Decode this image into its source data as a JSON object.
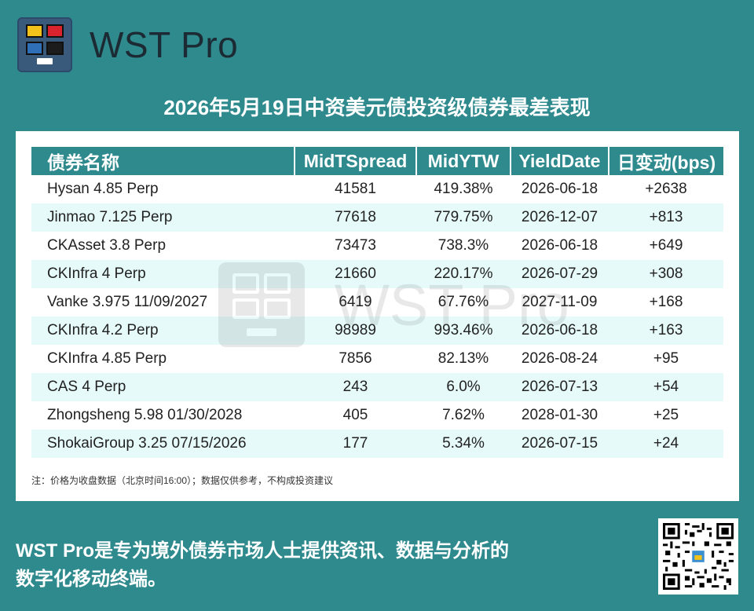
{
  "brand": {
    "name": "WST Pro"
  },
  "headline": "2026年5月19日中资美元债投资级债券最差表现",
  "table": {
    "headers": [
      "债券名称",
      "MidTSpread",
      "MidYTW",
      "YieldDate",
      "日变动(bps)"
    ],
    "rows": [
      {
        "name": "Hysan 4.85 Perp",
        "spread": "41581",
        "ytw": "419.38%",
        "date": "2026-06-18",
        "change": "+2638"
      },
      {
        "name": "Jinmao 7.125 Perp",
        "spread": "77618",
        "ytw": "779.75%",
        "date": "2026-12-07",
        "change": "+813"
      },
      {
        "name": "CKAsset 3.8 Perp",
        "spread": "73473",
        "ytw": "738.3%",
        "date": "2026-06-18",
        "change": "+649"
      },
      {
        "name": "CKInfra 4 Perp",
        "spread": "21660",
        "ytw": "220.17%",
        "date": "2026-07-29",
        "change": "+308"
      },
      {
        "name": "Vanke 3.975 11/09/2027",
        "spread": "6419",
        "ytw": "67.76%",
        "date": "2027-11-09",
        "change": "+168"
      },
      {
        "name": "CKInfra 4.2 Perp",
        "spread": "98989",
        "ytw": "993.46%",
        "date": "2026-06-18",
        "change": "+163"
      },
      {
        "name": "CKInfra 4.85 Perp",
        "spread": "7856",
        "ytw": "82.13%",
        "date": "2026-08-24",
        "change": "+95"
      },
      {
        "name": "CAS 4 Perp",
        "spread": "243",
        "ytw": "6.0%",
        "date": "2026-07-13",
        "change": "+54"
      },
      {
        "name": "Zhongsheng 5.98 01/30/2028",
        "spread": "405",
        "ytw": "7.62%",
        "date": "2028-01-30",
        "change": "+25"
      },
      {
        "name": "ShokaiGroup 3.25 07/15/2026",
        "spread": "177",
        "ytw": "5.34%",
        "date": "2026-07-15",
        "change": "+24"
      }
    ]
  },
  "watermark": "WST Pro",
  "note": "注：价格为收盘数据（北京时间16:00）；数据仅供参考，不构成投资建议",
  "footer": {
    "line1": "WST Pro是专为境外债券市场人士提供资讯、数据与分析的",
    "line2": "数字化移动终端。"
  },
  "colors": {
    "background": "#2f8a8e",
    "header": "#2f8a8e",
    "row_alt": "#e6fafa",
    "logo": "#3a5a7c"
  },
  "icons": {
    "logo": "wst-logo-icon",
    "qr": "qr-code-icon"
  }
}
